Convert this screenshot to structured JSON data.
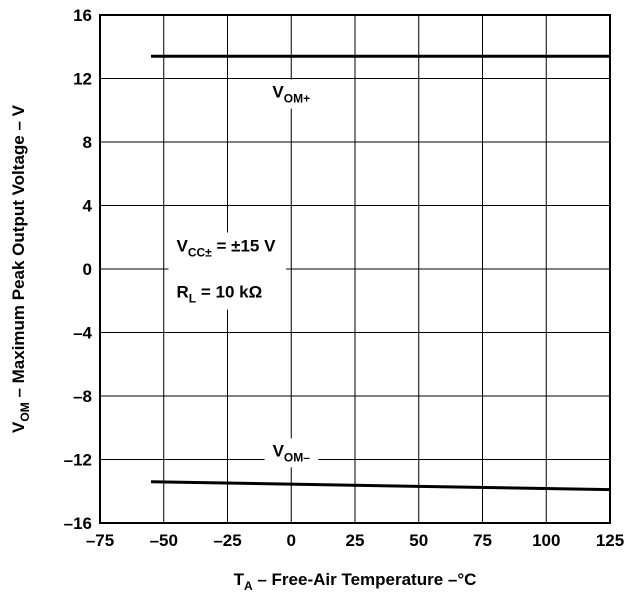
{
  "chart_data": {
    "type": "line",
    "xlabel": {
      "main": "T",
      "sub": "A",
      "rest": " – Free-Air Temperature –°C"
    },
    "ylabel": {
      "main": "V",
      "sub": "OM",
      "rest": " – Maximum Peak Output Voltage – V"
    },
    "xlim": [
      -75,
      125
    ],
    "ylim": [
      -16,
      16
    ],
    "xticks": [
      -75,
      -50,
      -25,
      0,
      25,
      50,
      75,
      100,
      125
    ],
    "yticks": [
      -16,
      -12,
      -8,
      -4,
      0,
      4,
      8,
      12,
      16
    ],
    "x_tick_labels": [
      "–75",
      "–50",
      "–25",
      "0",
      "25",
      "50",
      "75",
      "100",
      "125"
    ],
    "y_tick_labels": [
      "–16",
      "–12",
      "–8",
      "–4",
      "0",
      "4",
      "8",
      "12",
      "16"
    ],
    "grid": true,
    "series": [
      {
        "name": "VOM+",
        "label_main": "V",
        "label_sub": "OM+",
        "x": [
          -55,
          125
        ],
        "y": [
          13.4,
          13.4
        ]
      },
      {
        "name": "VOM–",
        "label_main": "V",
        "label_sub": "OM–",
        "x": [
          -55,
          125
        ],
        "y": [
          -13.4,
          -13.9
        ]
      }
    ],
    "annotations": {
      "vcc_main": "V",
      "vcc_sub": "CC±",
      "vcc_rest": " = ±15 V",
      "rl_main": "R",
      "rl_sub": "L",
      "rl_rest": " = 10 kΩ"
    }
  }
}
